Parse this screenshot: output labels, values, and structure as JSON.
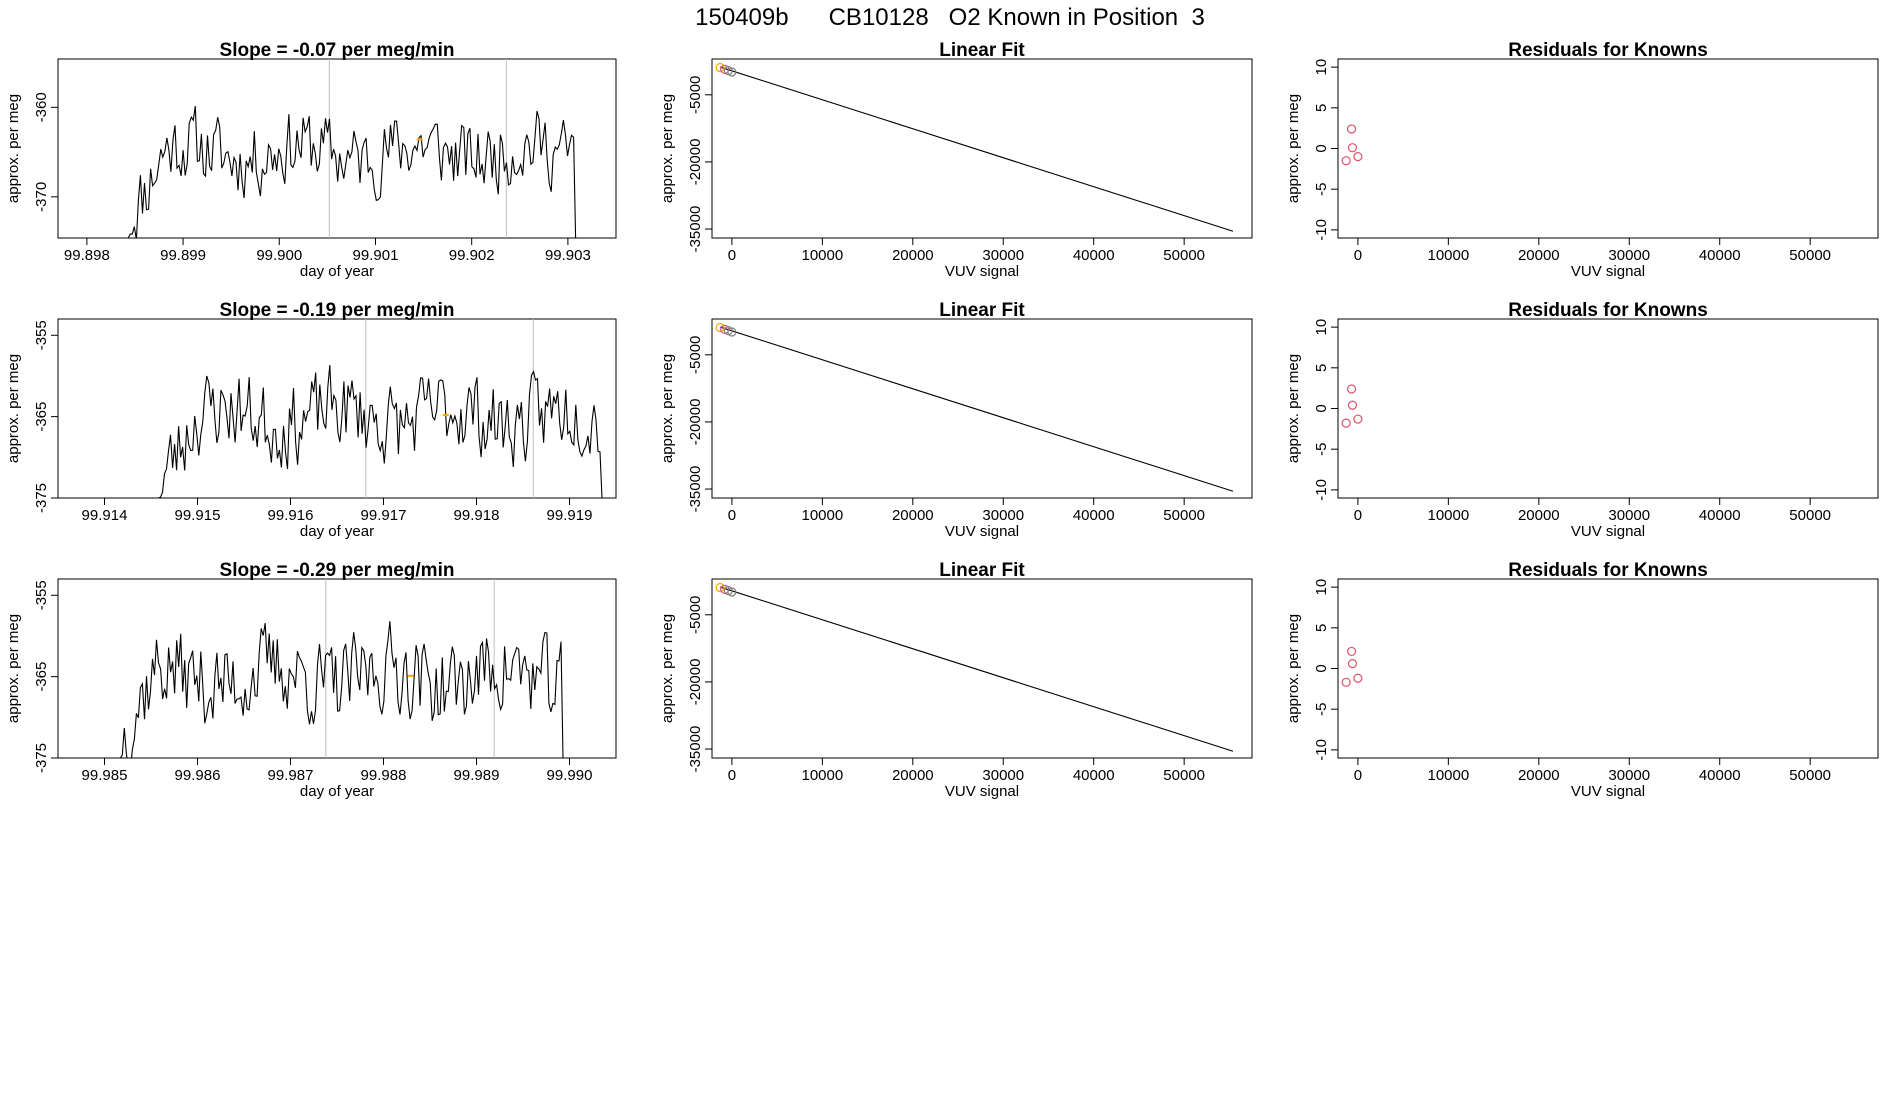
{
  "page_title": "150409b      CB10128   O2 Known in Position  3",
  "colors": {
    "line": "#000000",
    "vline": "#bebebe",
    "orange": "#ffa500",
    "red": "#df536b",
    "gray": "#808080"
  },
  "chart_data": [
    {
      "type": "line",
      "title": "Slope =  -0.07  per meg/min",
      "xlabel": "day of year",
      "ylabel": "approx. per meg",
      "xlim": [
        99.8977,
        99.9035
      ],
      "ylim": [
        -374.6,
        -354.6
      ],
      "xticks": [
        99.898,
        99.899,
        99.9,
        99.901,
        99.902,
        99.903
      ],
      "xtick_labels": [
        "99.898",
        "99.899",
        "99.900",
        "99.901",
        "99.902",
        "99.903"
      ],
      "yticks": [
        -360,
        -370
      ],
      "ytick_labels": [
        "-360",
        "-370"
      ],
      "vlines": [
        99.90052,
        99.90236
      ],
      "start": 99.89843,
      "end": 99.90308,
      "n": 220,
      "mean": -365.0,
      "amp": 2.6,
      "seed": 11,
      "start_level": -374.6,
      "end_level": -374.6,
      "marker": {
        "x": 99.90146,
        "y": -363.6
      }
    },
    {
      "type": "line",
      "title": "Slope =  -0.19  per meg/min",
      "xlabel": "day of year",
      "ylabel": "approx. per meg",
      "xlim": [
        99.9135,
        99.9195
      ],
      "ylim": [
        -375.0,
        -353.0
      ],
      "xticks": [
        99.914,
        99.915,
        99.916,
        99.917,
        99.918,
        99.919
      ],
      "xtick_labels": [
        "99.914",
        "99.915",
        "99.916",
        "99.917",
        "99.918",
        "99.919"
      ],
      "yticks": [
        -355,
        -365,
        -375
      ],
      "ytick_labels": [
        "-355",
        "-365",
        "-375"
      ],
      "vlines": [
        99.91681,
        99.91861
      ],
      "start": 99.91458,
      "end": 99.91935,
      "n": 220,
      "mean": -365.0,
      "amp": 3.2,
      "seed": 23,
      "start_level": -375.0,
      "end_level": -375.0,
      "marker": {
        "x": 99.91767,
        "y": -364.8
      }
    },
    {
      "type": "line",
      "title": "Slope =  -0.29  per meg/min",
      "xlabel": "day of year",
      "ylabel": "approx. per meg",
      "xlim": [
        99.9845,
        99.9905
      ],
      "ylim": [
        -375.0,
        -353.0
      ],
      "xticks": [
        99.985,
        99.986,
        99.987,
        99.988,
        99.989,
        99.99
      ],
      "xtick_labels": [
        "99.985",
        "99.986",
        "99.987",
        "99.988",
        "99.989",
        "99.990"
      ],
      "yticks": [
        -355,
        -365,
        -375
      ],
      "ytick_labels": [
        "-355",
        "-365",
        "-375"
      ],
      "vlines": [
        99.98738,
        99.98919
      ],
      "start": 99.98517,
      "end": 99.98993,
      "n": 220,
      "mean": -365.0,
      "amp": 3.4,
      "seed": 37,
      "start_level": -375.0,
      "end_level": -375.0,
      "marker": {
        "x": 99.98829,
        "y": -364.9
      }
    },
    {
      "type": "scatter",
      "title": "Linear Fit",
      "xlabel": "VUV signal",
      "ylabel": "approx. per meg",
      "xlim": [
        -2200,
        57500
      ],
      "ylim": [
        -37000,
        3000
      ],
      "xticks": [
        0,
        10000,
        20000,
        30000,
        40000,
        50000
      ],
      "xtick_labels": [
        "0",
        "10000",
        "20000",
        "30000",
        "40000",
        "50000"
      ],
      "yticks": [
        -5000,
        -20000,
        -35000
      ],
      "ytick_labels": [
        "-5000",
        "-20000",
        "-35000"
      ],
      "fit_line": {
        "x": [
          -1300,
          55400
        ],
        "y": [
          1200,
          -35500
        ]
      },
      "points": [
        {
          "x": -1300,
          "y": 1100,
          "color": "orange"
        },
        {
          "x": -800,
          "y": 700,
          "color": "red"
        },
        {
          "x": -400,
          "y": 400,
          "color": "gray"
        },
        {
          "x": 0,
          "y": 100,
          "color": "gray"
        }
      ]
    },
    {
      "type": "scatter",
      "title": "Linear Fit",
      "xlabel": "VUV signal",
      "ylabel": "approx. per meg",
      "xlim": [
        -2200,
        57500
      ],
      "ylim": [
        -37000,
        3000
      ],
      "xticks": [
        0,
        10000,
        20000,
        30000,
        40000,
        50000
      ],
      "xtick_labels": [
        "0",
        "10000",
        "20000",
        "30000",
        "40000",
        "50000"
      ],
      "yticks": [
        -5000,
        -20000,
        -35000
      ],
      "ytick_labels": [
        "-5000",
        "-20000",
        "-35000"
      ],
      "fit_line": {
        "x": [
          -1300,
          55400
        ],
        "y": [
          1200,
          -35500
        ]
      },
      "points": [
        {
          "x": -1300,
          "y": 1100,
          "color": "orange"
        },
        {
          "x": -800,
          "y": 700,
          "color": "red"
        },
        {
          "x": -400,
          "y": 400,
          "color": "gray"
        },
        {
          "x": 0,
          "y": 100,
          "color": "gray"
        }
      ]
    },
    {
      "type": "scatter",
      "title": "Linear Fit",
      "xlabel": "VUV signal",
      "ylabel": "approx. per meg",
      "xlim": [
        -2200,
        57500
      ],
      "ylim": [
        -37000,
        3000
      ],
      "xticks": [
        0,
        10000,
        20000,
        30000,
        40000,
        50000
      ],
      "xtick_labels": [
        "0",
        "10000",
        "20000",
        "30000",
        "40000",
        "50000"
      ],
      "yticks": [
        -5000,
        -20000,
        -35000
      ],
      "ytick_labels": [
        "-5000",
        "-20000",
        "-35000"
      ],
      "fit_line": {
        "x": [
          -1300,
          55400
        ],
        "y": [
          1200,
          -35500
        ]
      },
      "points": [
        {
          "x": -1300,
          "y": 1100,
          "color": "orange"
        },
        {
          "x": -800,
          "y": 700,
          "color": "red"
        },
        {
          "x": -400,
          "y": 400,
          "color": "gray"
        },
        {
          "x": 0,
          "y": 100,
          "color": "gray"
        }
      ]
    },
    {
      "type": "scatter",
      "title": "Residuals for Knowns",
      "xlabel": "VUV signal",
      "ylabel": "approx. per meg",
      "xlim": [
        -2200,
        57500
      ],
      "ylim": [
        -11,
        11
      ],
      "xticks": [
        0,
        10000,
        20000,
        30000,
        40000,
        50000
      ],
      "xtick_labels": [
        "0",
        "10000",
        "20000",
        "30000",
        "40000",
        "50000"
      ],
      "yticks": [
        10,
        5,
        0,
        -5,
        -10
      ],
      "ytick_labels": [
        "10",
        "5",
        "0",
        "-5",
        "-10"
      ],
      "points": [
        {
          "x": -1300,
          "y": -1.5,
          "color": "red"
        },
        {
          "x": -700,
          "y": 2.4,
          "color": "red"
        },
        {
          "x": -600,
          "y": 0.1,
          "color": "red"
        },
        {
          "x": 0,
          "y": -1.0,
          "color": "red"
        }
      ]
    },
    {
      "type": "scatter",
      "title": "Residuals for Knowns",
      "xlabel": "VUV signal",
      "ylabel": "approx. per meg",
      "xlim": [
        -2200,
        57500
      ],
      "ylim": [
        -11,
        11
      ],
      "xticks": [
        0,
        10000,
        20000,
        30000,
        40000,
        50000
      ],
      "xtick_labels": [
        "0",
        "10000",
        "20000",
        "30000",
        "40000",
        "50000"
      ],
      "yticks": [
        10,
        5,
        0,
        -5,
        -10
      ],
      "ytick_labels": [
        "10",
        "5",
        "0",
        "-5",
        "-10"
      ],
      "points": [
        {
          "x": -1300,
          "y": -1.8,
          "color": "red"
        },
        {
          "x": -700,
          "y": 2.4,
          "color": "red"
        },
        {
          "x": -600,
          "y": 0.4,
          "color": "red"
        },
        {
          "x": 0,
          "y": -1.3,
          "color": "red"
        }
      ]
    },
    {
      "type": "scatter",
      "title": "Residuals for Knowns",
      "xlabel": "VUV signal",
      "ylabel": "approx. per meg",
      "xlim": [
        -2200,
        57500
      ],
      "ylim": [
        -11,
        11
      ],
      "xticks": [
        0,
        10000,
        20000,
        30000,
        40000,
        50000
      ],
      "xtick_labels": [
        "0",
        "10000",
        "20000",
        "30000",
        "40000",
        "50000"
      ],
      "yticks": [
        10,
        5,
        0,
        -5,
        -10
      ],
      "ytick_labels": [
        "10",
        "5",
        "0",
        "-5",
        "-10"
      ],
      "points": [
        {
          "x": -1300,
          "y": -1.7,
          "color": "red"
        },
        {
          "x": -700,
          "y": 2.1,
          "color": "red"
        },
        {
          "x": -600,
          "y": 0.6,
          "color": "red"
        },
        {
          "x": 0,
          "y": -1.2,
          "color": "red"
        }
      ]
    }
  ]
}
